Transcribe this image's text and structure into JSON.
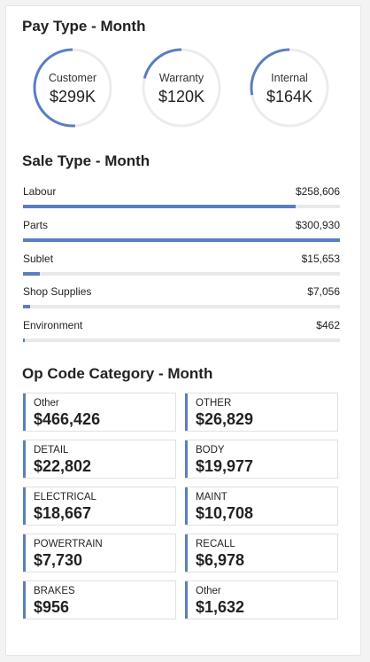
{
  "pay_type": {
    "title": "Pay Type - Month",
    "accent_color": "#5a7ec0",
    "items": [
      {
        "label": "Customer",
        "value": "$299K",
        "fraction": 0.51
      },
      {
        "label": "Warranty",
        "value": "$120K",
        "fraction": 0.21
      },
      {
        "label": "Internal",
        "value": "$164K",
        "fraction": 0.28
      }
    ]
  },
  "sale_type": {
    "title": "Sale Type - Month",
    "items": [
      {
        "label": "Labour",
        "value": "$258,606",
        "fraction": 0.86
      },
      {
        "label": "Parts",
        "value": "$300,930",
        "fraction": 1.0
      },
      {
        "label": "Sublet",
        "value": "$15,653",
        "fraction": 0.052
      },
      {
        "label": "Shop Supplies",
        "value": "$7,056",
        "fraction": 0.023
      },
      {
        "label": "Environment",
        "value": "$462",
        "fraction": 0.002
      }
    ]
  },
  "op_code": {
    "title": "Op Code Category - Month",
    "cards": [
      {
        "label": "Other",
        "value": "$466,426"
      },
      {
        "label": "OTHER",
        "value": "$26,829"
      },
      {
        "label": "DETAIL",
        "value": "$22,802"
      },
      {
        "label": "BODY",
        "value": "$19,977"
      },
      {
        "label": "ELECTRICAL",
        "value": "$18,667"
      },
      {
        "label": "MAINT",
        "value": "$10,708"
      },
      {
        "label": "POWERTRAIN",
        "value": "$7,730"
      },
      {
        "label": "RECALL",
        "value": "$6,978"
      },
      {
        "label": "BRAKES",
        "value": "$956"
      },
      {
        "label": "Other",
        "value": "$1,632"
      }
    ]
  }
}
